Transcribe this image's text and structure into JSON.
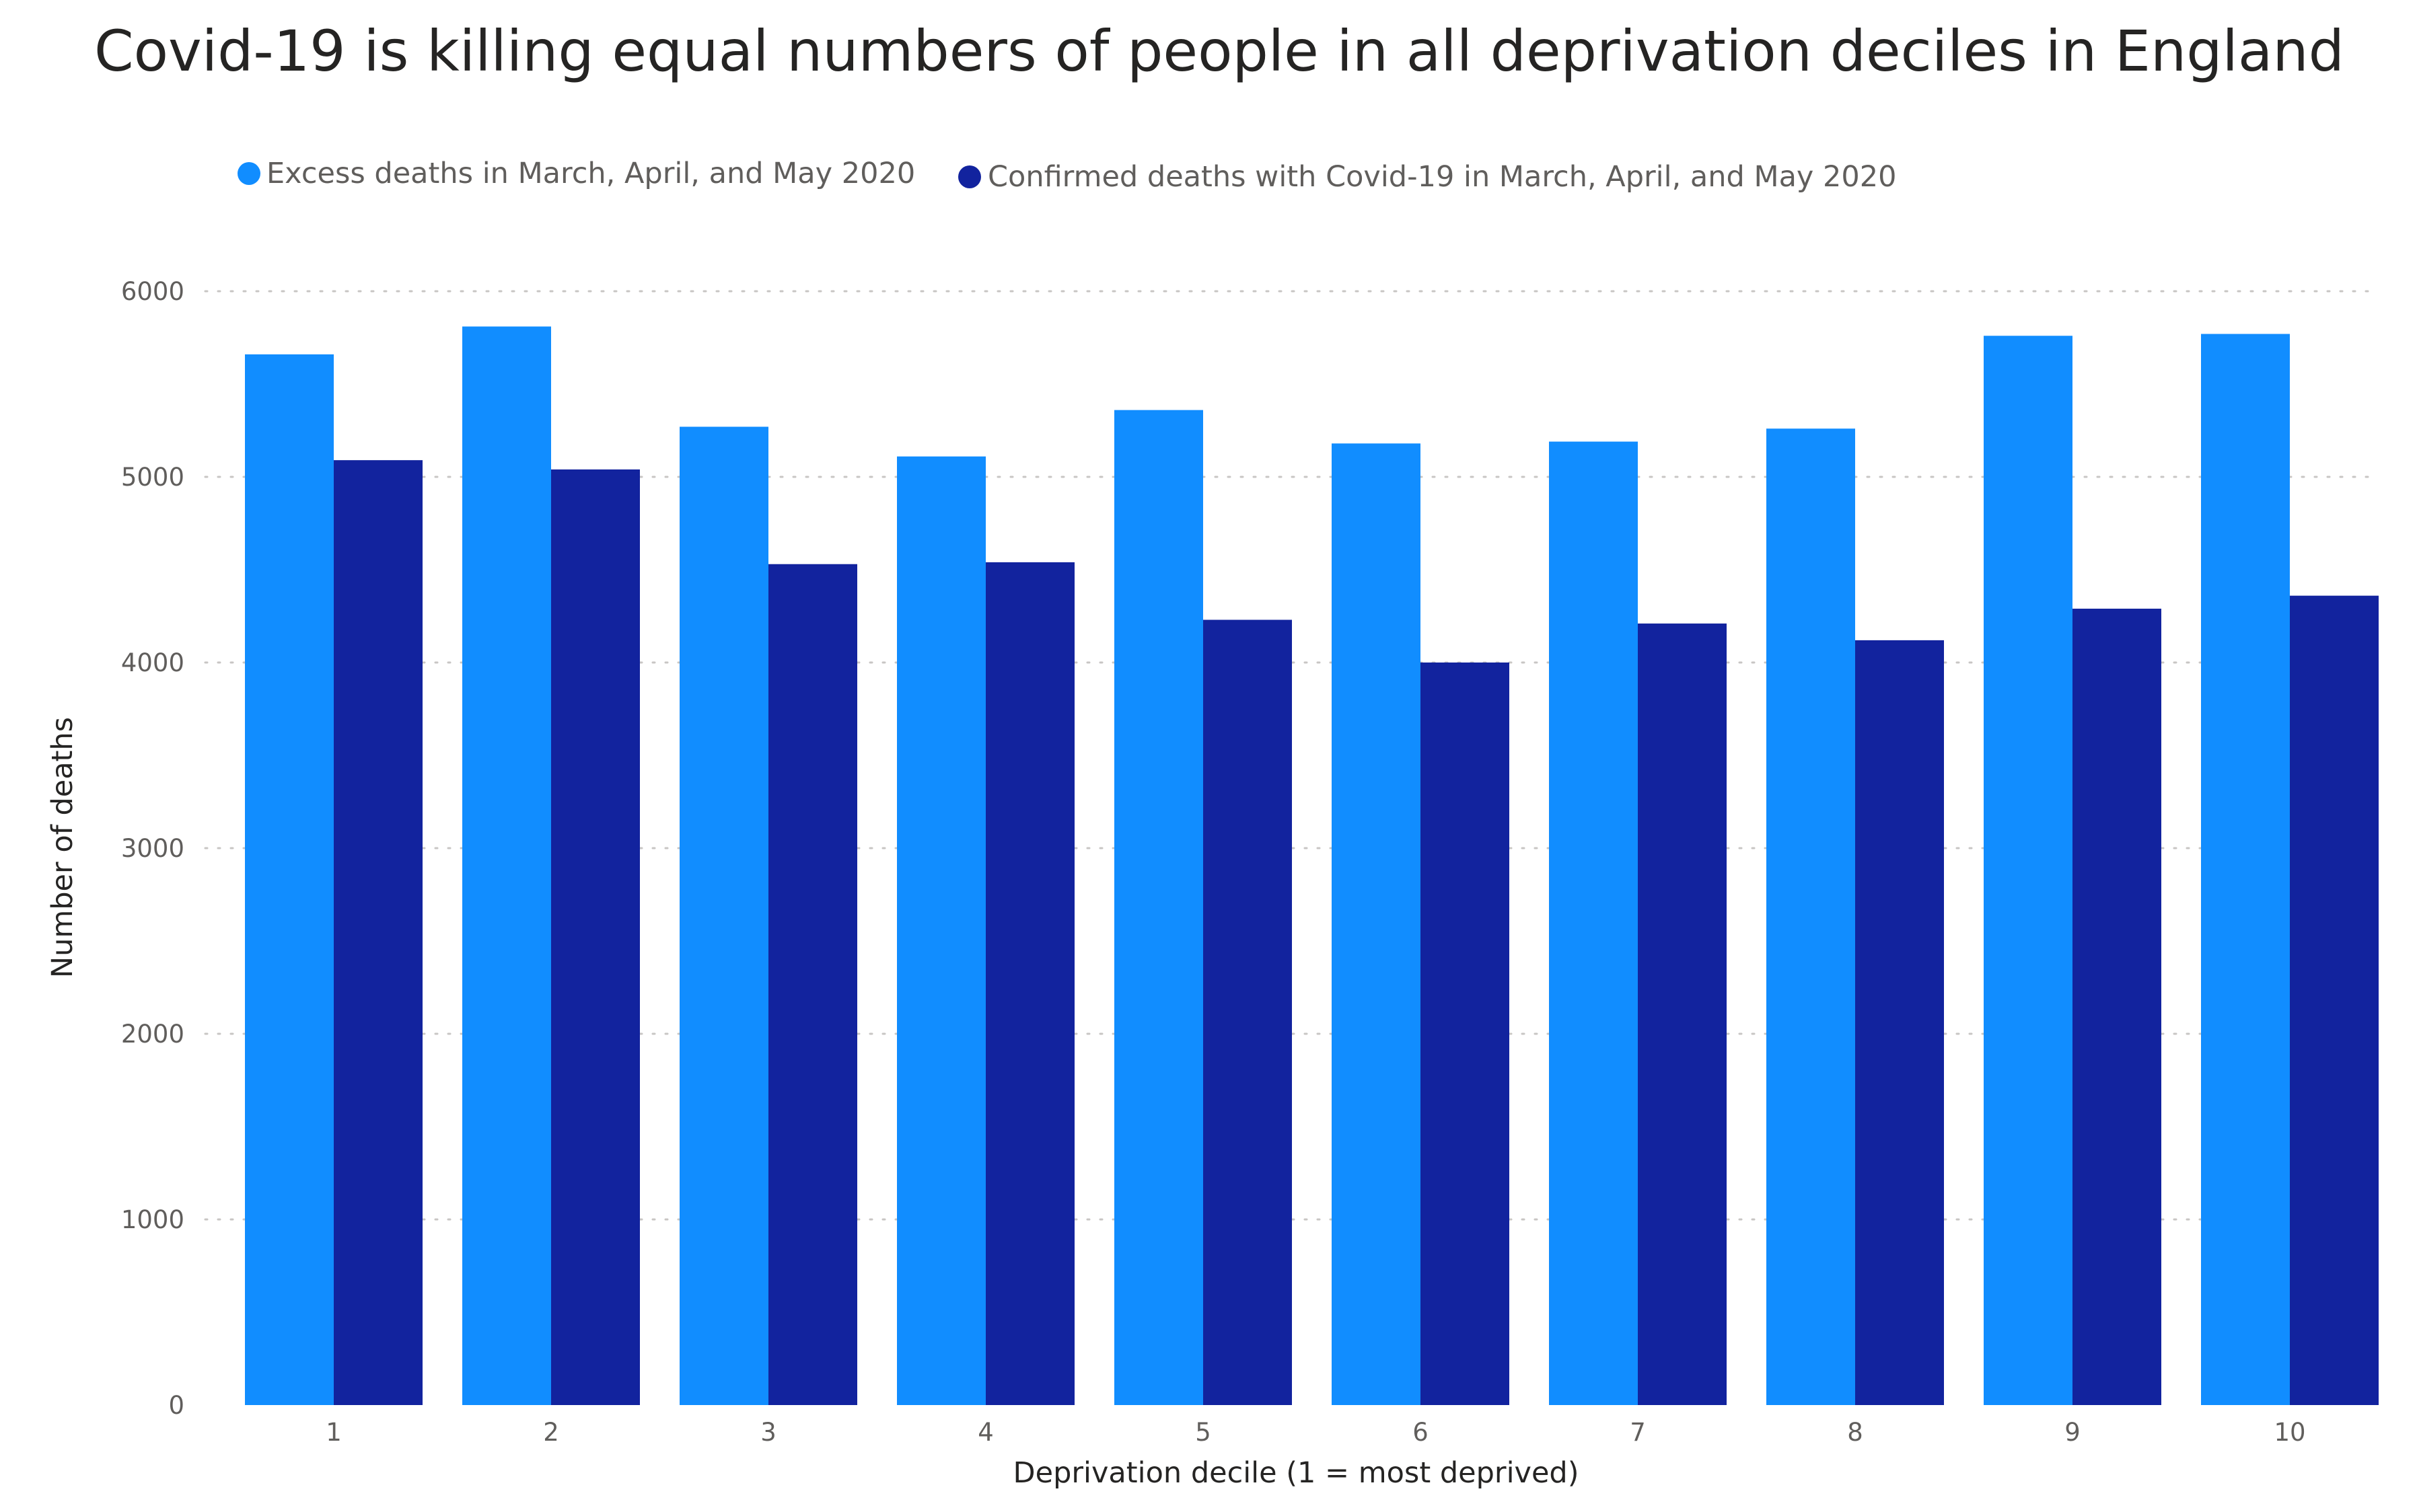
{
  "chart_data": {
    "type": "bar",
    "title": "Covid-19 is killing equal numbers of people in all deprivation deciles in England",
    "xlabel": "Deprivation decile (1 = most deprived)",
    "ylabel": "Number of deaths",
    "categories": [
      "1",
      "2",
      "3",
      "4",
      "5",
      "6",
      "7",
      "8",
      "9",
      "10"
    ],
    "series": [
      {
        "name": "Excess deaths in March, April, and May 2020",
        "color": "#118DFF",
        "values": [
          5660,
          5810,
          5270,
          5110,
          5360,
          5180,
          5190,
          5260,
          5760,
          5770
        ]
      },
      {
        "name": "Confirmed deaths with Covid-19 in March, April, and May 2020",
        "color": "#12239E",
        "values": [
          5090,
          5040,
          4530,
          4540,
          4230,
          4000,
          4210,
          4120,
          4290,
          4360
        ]
      }
    ],
    "ylim": [
      0,
      6000
    ],
    "yticks": [
      0,
      1000,
      2000,
      3000,
      4000,
      5000,
      6000
    ],
    "grid": true,
    "legend_position": "top-left"
  }
}
